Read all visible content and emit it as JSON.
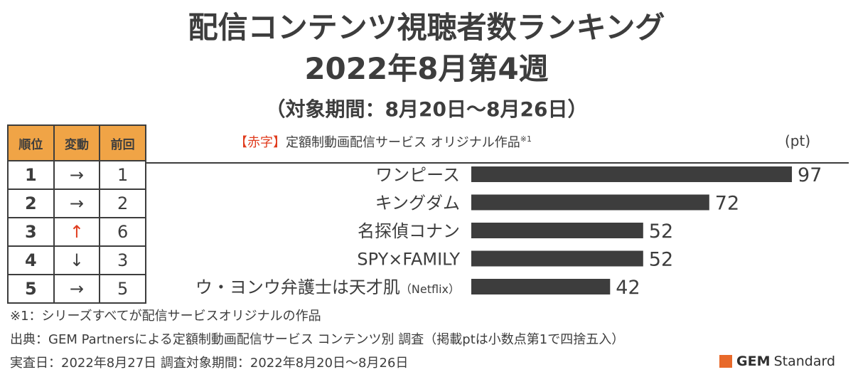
{
  "title": {
    "line1": "配信コンテンツ視聴者数ランキング",
    "line2": "2022年8月第4週",
    "line3": "（対象期間：8月20日〜8月26日）"
  },
  "table": {
    "headers": [
      "順位",
      "変動",
      "前回"
    ],
    "rows": [
      {
        "rank": "1",
        "change": "→",
        "prev": "1",
        "highlight": false
      },
      {
        "rank": "2",
        "change": "→",
        "prev": "2",
        "highlight": false
      },
      {
        "rank": "3",
        "change": "↑",
        "prev": "6",
        "highlight": true
      },
      {
        "rank": "4",
        "change": "↓",
        "prev": "3",
        "highlight": false
      },
      {
        "rank": "5",
        "change": "→",
        "prev": "5",
        "highlight": false
      }
    ]
  },
  "legend": {
    "open_bracket": "【",
    "red_text": "赤字",
    "close_bracket": "】",
    "text": "定額制動画配信サービス オリジナル作品",
    "note_mark": "※1"
  },
  "colors": {
    "bar": "#3d3d3d",
    "original_title": "#e03c1e",
    "header_bg": "#f0a446",
    "logo": "#e8692a"
  },
  "chart_data": {
    "type": "bar",
    "orientation": "horizontal",
    "unit": "(pt)",
    "categories": [
      "ワンピース",
      "キングダム",
      "名探偵コナン",
      "SPY×FAMILY",
      "ウ・ヨンウ弁護士は天才肌"
    ],
    "category_suffix": [
      "",
      "",
      "",
      "",
      "（Netflix）"
    ],
    "original": [
      false,
      false,
      false,
      false,
      true
    ],
    "values": [
      97,
      72,
      52,
      52,
      42
    ],
    "xlim": [
      0,
      100
    ]
  },
  "notes": {
    "n1": "※1：シリーズすべてが配信サービスオリジナルの作品",
    "n2": "出典：GEM Partnersによる定額制動画配信サービス コンテンツ別 調査（掲載ptは小数点第1で四捨五入）",
    "n3": "実査日：2022年8月27日 調査対象期間：2022年8月20日〜8月26日"
  },
  "logo": {
    "bold": "GEM",
    "rest": "Standard"
  }
}
